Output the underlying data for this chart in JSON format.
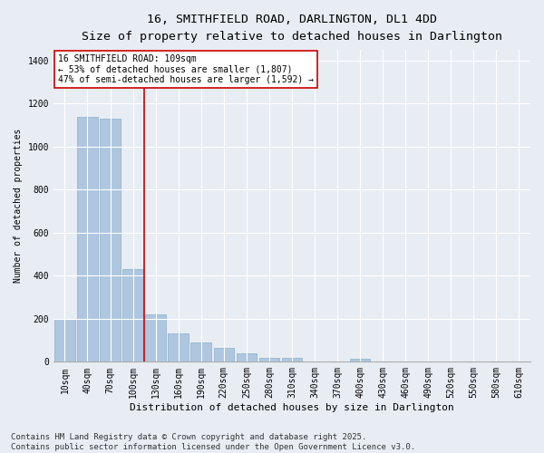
{
  "title1": "16, SMITHFIELD ROAD, DARLINGTON, DL1 4DD",
  "title2": "Size of property relative to detached houses in Darlington",
  "xlabel": "Distribution of detached houses by size in Darlington",
  "ylabel": "Number of detached properties",
  "categories": [
    "10sqm",
    "40sqm",
    "70sqm",
    "100sqm",
    "130sqm",
    "160sqm",
    "190sqm",
    "220sqm",
    "250sqm",
    "280sqm",
    "310sqm",
    "340sqm",
    "370sqm",
    "400sqm",
    "430sqm",
    "460sqm",
    "490sqm",
    "520sqm",
    "550sqm",
    "580sqm",
    "610sqm"
  ],
  "values": [
    200,
    1140,
    1130,
    430,
    220,
    130,
    90,
    65,
    40,
    18,
    18,
    0,
    0,
    15,
    0,
    0,
    0,
    0,
    0,
    0,
    0
  ],
  "bar_color": "#aec6df",
  "bar_edge_color": "#8aaec8",
  "vline_color": "#cc0000",
  "annotation_text": "16 SMITHFIELD ROAD: 109sqm\n← 53% of detached houses are smaller (1,807)\n47% of semi-detached houses are larger (1,592) →",
  "annotation_box_color": "#ffffff",
  "annotation_box_edge": "#cc0000",
  "ylim": [
    0,
    1450
  ],
  "yticks": [
    0,
    200,
    400,
    600,
    800,
    1000,
    1200,
    1400
  ],
  "background_color": "#e8edf4",
  "plot_bg_color": "#e8edf4",
  "footer": "Contains HM Land Registry data © Crown copyright and database right 2025.\nContains public sector information licensed under the Open Government Licence v3.0.",
  "title_fontsize": 9.5,
  "subtitle_fontsize": 8.5,
  "axis_fontsize": 7,
  "ylabel_fontsize": 7,
  "xlabel_fontsize": 8,
  "annotation_fontsize": 7,
  "footer_fontsize": 6.5
}
